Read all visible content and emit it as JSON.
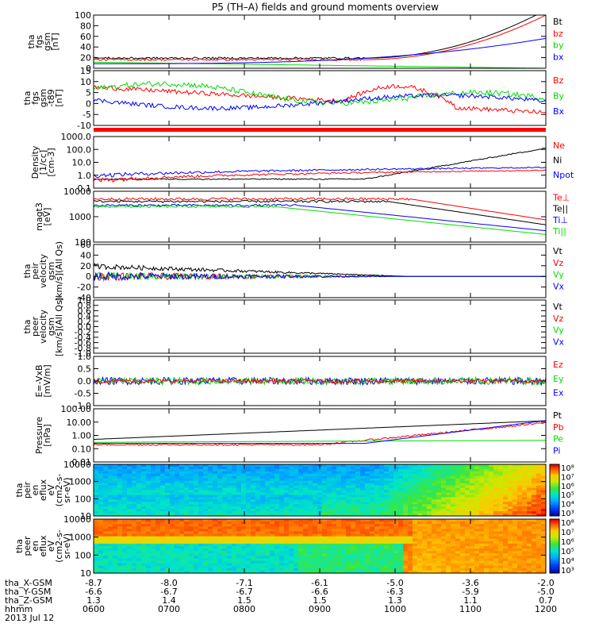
{
  "title": "P5 (TH–A) fields and ground moments overview",
  "colors": {
    "black": "#000000",
    "red": "#ff0000",
    "green": "#00dd00",
    "blue": "#0000ff"
  },
  "chart_data": [
    {
      "type": "line",
      "ylabel": [
        "tha",
        "fgs",
        "gsm",
        "[nT]"
      ],
      "ylim": [
        -5,
        100
      ],
      "yticks": [
        "100",
        "80",
        "60",
        "40",
        "20",
        "0"
      ],
      "legend": [
        {
          "text": "Bt",
          "color": "black"
        },
        {
          "text": "bz",
          "color": "red"
        },
        {
          "text": "by",
          "color": "green"
        },
        {
          "text": "bx",
          "color": "blue"
        }
      ]
    },
    {
      "type": "line",
      "ylabel": [
        "tha",
        "fgs",
        "gsm",
        "-t89",
        "[nT]"
      ],
      "ylim": [
        -15,
        15
      ],
      "yticks": [
        "15",
        "10",
        "5",
        "0",
        "-5",
        "-10"
      ],
      "legend": [
        {
          "text": "Bz",
          "color": "red"
        },
        {
          "text": "By",
          "color": "green"
        },
        {
          "text": "Bx",
          "color": "blue"
        }
      ]
    },
    {
      "type": "line",
      "log": true,
      "ylabel": [
        "Density",
        "[1/cc]",
        "[cm-3]"
      ],
      "ylim": [
        0.1,
        1000
      ],
      "yticks": [
        "1000.0",
        "100.0",
        "10.0",
        "1.0",
        "0.1"
      ],
      "legend": [
        {
          "text": "Ne",
          "color": "red"
        },
        {
          "text": "Ni",
          "color": "black"
        },
        {
          "text": "Npot",
          "color": "blue"
        }
      ]
    },
    {
      "type": "line",
      "log": true,
      "ylabel": [
        "magt3",
        "[eV]"
      ],
      "ylim": [
        100,
        10000
      ],
      "yticks": [
        "10000",
        "1000",
        "100"
      ],
      "legend": [
        {
          "text": "Te⊥",
          "color": "red"
        },
        {
          "text": "Te||",
          "color": "black"
        },
        {
          "text": "Ti⊥",
          "color": "blue"
        },
        {
          "text": "Ti||",
          "color": "green"
        }
      ]
    },
    {
      "type": "line",
      "ylabel": [
        "tha",
        "peir",
        "velocity",
        "gsm",
        "[km/s](All Qs)"
      ],
      "ylim": [
        -40,
        60
      ],
      "yticks": [
        "60",
        "40",
        "20",
        "0",
        "-20",
        "-40"
      ],
      "legend": [
        {
          "text": "Vt",
          "color": "black"
        },
        {
          "text": "Vz",
          "color": "red"
        },
        {
          "text": "Vy",
          "color": "green"
        },
        {
          "text": "Vx",
          "color": "blue"
        }
      ]
    },
    {
      "type": "line",
      "ylabel": [
        "tha",
        "peer",
        "velocity",
        "gsm",
        "[km/s](All Qs)"
      ],
      "ylim": [
        -1,
        1
      ],
      "yticks": [
        "1.0",
        "0.8",
        "0.6",
        "0.4",
        "0.2",
        "0.0",
        "-0.2",
        "-0.4",
        "-0.6",
        "-0.8",
        "-1.0"
      ],
      "legend": [
        {
          "text": "Vt",
          "color": "black"
        },
        {
          "text": "Vz",
          "color": "red"
        },
        {
          "text": "Vy",
          "color": "green"
        },
        {
          "text": "Vx",
          "color": "blue"
        }
      ]
    },
    {
      "type": "line",
      "ylabel": [
        "E=-VxB",
        "[mV/m]"
      ],
      "ylim": [
        -1,
        1
      ],
      "yticks": [
        "1.0",
        "0.5",
        "0.0",
        "-0.5",
        "-1.0"
      ],
      "legend": [
        {
          "text": "Ez",
          "color": "red"
        },
        {
          "text": "Ey",
          "color": "green"
        },
        {
          "text": "Ex",
          "color": "blue"
        }
      ]
    },
    {
      "type": "line",
      "log": true,
      "ylabel": [
        "Pressure",
        "[nPa]"
      ],
      "ylim": [
        0.01,
        100
      ],
      "yticks": [
        "100.00",
        "10.00",
        "1.00",
        "0.10",
        "0.01"
      ],
      "legend": [
        {
          "text": "Pt",
          "color": "black"
        },
        {
          "text": "Pb",
          "color": "red"
        },
        {
          "text": "Pe",
          "color": "green"
        },
        {
          "text": "Pi",
          "color": "blue"
        }
      ]
    },
    {
      "type": "heatmap",
      "ylabel": [
        "tha",
        "peir",
        "en",
        "eflux",
        "eV",
        "(cm2-s-",
        "sr-eV)"
      ],
      "ylim": [
        10,
        10000
      ],
      "yticks": [
        "10000",
        "1000",
        "100",
        "10"
      ],
      "colorbar": {
        "ticks": [
          "10⁸",
          "10⁷",
          "10⁶",
          "10⁵",
          "10⁴",
          "10³"
        ],
        "range": [
          3,
          8
        ]
      }
    },
    {
      "type": "heatmap",
      "ylabel": [
        "tha",
        "peer",
        "en",
        "eflux",
        "eV",
        "(cm2-s-",
        "sr-eV)"
      ],
      "ylim": [
        10,
        10000
      ],
      "yticks": [
        "10000",
        "1000",
        "100",
        "10"
      ],
      "colorbar": {
        "ticks": [
          "10⁸",
          "10⁷",
          "10⁶",
          "10⁵",
          "10⁴",
          "10³"
        ],
        "range": [
          3,
          8
        ]
      }
    }
  ],
  "xaxis": {
    "labels": [
      "tha_X-GSM",
      "tha_Y-GSM",
      "tha_Z-GSM",
      "hhmm",
      "2013 Jul 12"
    ],
    "columns": [
      {
        "x": "-8.7",
        "y": "-6.6",
        "z": "1.3",
        "t": "0600"
      },
      {
        "x": "-8.0",
        "y": "-6.7",
        "z": "1.4",
        "t": "0700"
      },
      {
        "x": "-7.1",
        "y": "-6.7",
        "z": "1.5",
        "t": "0800"
      },
      {
        "x": "-6.1",
        "y": "-6.6",
        "z": "1.5",
        "t": "0900"
      },
      {
        "x": "-5.0",
        "y": "-6.3",
        "z": "1.3",
        "t": "1000"
      },
      {
        "x": "-3.6",
        "y": "-5.9",
        "z": "1.1",
        "t": "1100"
      },
      {
        "x": "-2.0",
        "y": "-5.0",
        "z": "0.7",
        "t": "1200"
      }
    ]
  }
}
